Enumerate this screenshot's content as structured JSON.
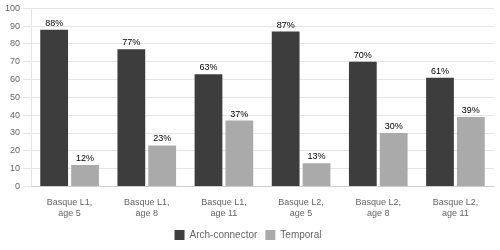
{
  "chart_data": {
    "type": "bar",
    "categories": [
      "Basque L1,\nage 5",
      "Basque L1,\nage 8",
      "Basque L1,\nage 11",
      "Basque L2,\nage 5",
      "Basque L2,\nage 8",
      "Basque L2,\nage 11"
    ],
    "series": [
      {
        "name": "Arch-connector",
        "color": "#3d3d3d",
        "values": [
          88,
          77,
          63,
          87,
          70,
          61
        ],
        "value_labels": [
          "88%",
          "77%",
          "63%",
          "87%",
          "70%",
          "61%"
        ]
      },
      {
        "name": "Temporal",
        "color": "#aaaaaa",
        "values": [
          12,
          23,
          37,
          13,
          30,
          39
        ],
        "value_labels": [
          "12%",
          "23%",
          "37%",
          "13%",
          "30%",
          "39%"
        ]
      }
    ],
    "ylim": [
      0,
      100
    ],
    "yticks": [
      0,
      10,
      20,
      30,
      40,
      50,
      60,
      70,
      80,
      90,
      100
    ],
    "grid": true,
    "legend": "bottom",
    "data_labels": true
  }
}
